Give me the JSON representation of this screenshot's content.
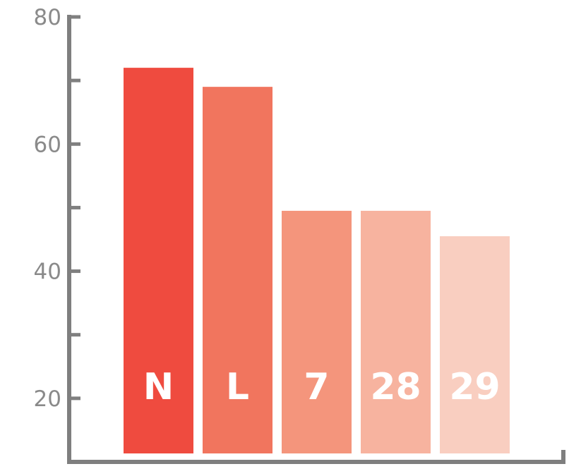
{
  "chart_data": {
    "type": "bar",
    "title": "",
    "xlabel": "",
    "ylabel": "",
    "categories": [
      "N",
      "L",
      "7",
      "28",
      "29"
    ],
    "values": [
      72,
      69,
      49.5,
      49.5,
      45.5
    ],
    "colors": [
      "#ef4b3f",
      "#f1755e",
      "#f4957c",
      "#f7b39f",
      "#f9cec0"
    ],
    "ylim": [
      10,
      80
    ],
    "yticks_labeled": [
      20,
      40,
      60,
      80
    ],
    "yticks_minor": [
      30,
      50,
      70
    ],
    "grid": false,
    "axis_color": "#7f7f7f",
    "tick_label_color": "#8a8a8a",
    "bar_label_color": "#ffffff"
  }
}
